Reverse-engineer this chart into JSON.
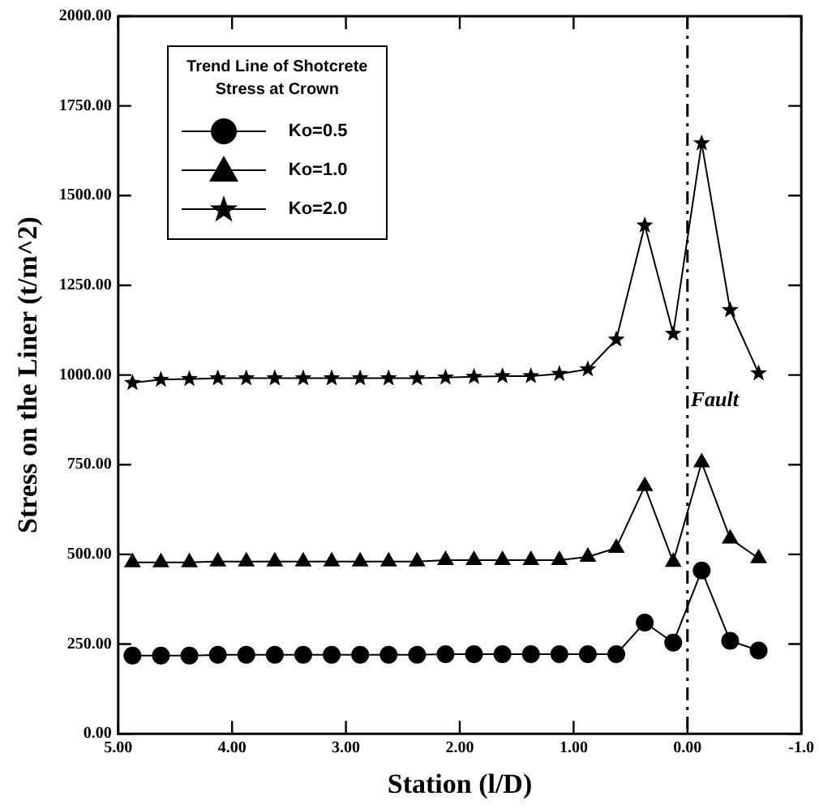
{
  "chart_data": {
    "type": "line",
    "xlabel": "Station (l/D)",
    "ylabel": "Stress on the Liner (t/m^2)",
    "legend_title": "Trend Line of Shotcrete Stress at Crown",
    "x": [
      4.875,
      4.625,
      4.375,
      4.125,
      3.875,
      3.625,
      3.375,
      3.125,
      2.875,
      2.625,
      2.375,
      2.125,
      1.875,
      1.625,
      1.375,
      1.125,
      0.875,
      0.625,
      0.375,
      0.125,
      -0.125,
      -0.375,
      -0.625
    ],
    "series": [
      {
        "name": "Ko=0.5",
        "color": "#000000",
        "marker": "circle",
        "values": [
          218,
          218,
          218,
          220,
          220,
          220,
          220,
          220,
          220,
          220,
          220,
          222,
          222,
          222,
          222,
          222,
          222,
          222,
          310,
          254,
          455,
          259,
          232
        ]
      },
      {
        "name": "Ko=1.0",
        "color": "#000000",
        "marker": "triangle",
        "values": [
          478,
          478,
          478,
          480,
          480,
          480,
          480,
          480,
          480,
          480,
          480,
          484,
          484,
          484,
          484,
          484,
          493,
          518,
          690,
          479,
          756,
          544,
          489
        ]
      },
      {
        "name": "Ko=2.0",
        "color": "#000000",
        "marker": "star",
        "values": [
          978,
          987,
          989,
          991,
          991,
          991,
          991,
          991,
          991,
          991,
          991,
          993,
          995,
          997,
          997,
          1003,
          1016,
          1099,
          1417,
          1115,
          1646,
          1181,
          1005
        ]
      }
    ],
    "xlim": [
      5,
      -1
    ],
    "xticks": [
      {
        "value": 5,
        "label": "5.00"
      },
      {
        "value": 4,
        "label": "4.00"
      },
      {
        "value": 3,
        "label": "3.00"
      },
      {
        "value": 2,
        "label": "2.00"
      },
      {
        "value": 1,
        "label": "1.00"
      },
      {
        "value": 0,
        "label": "0.00"
      },
      {
        "value": -1,
        "label": "-1.0"
      }
    ],
    "ylim": [
      0,
      2000
    ],
    "yticks": [
      {
        "value": 0,
        "label": "0.00"
      },
      {
        "value": 250,
        "label": "250.00"
      },
      {
        "value": 500,
        "label": "500.00"
      },
      {
        "value": 750,
        "label": "750.00"
      },
      {
        "value": 1000,
        "label": "1000.00"
      },
      {
        "value": 1250,
        "label": "1250.00"
      },
      {
        "value": 1500,
        "label": "1500.00"
      },
      {
        "value": 1750,
        "label": "1750.00"
      },
      {
        "value": 2000,
        "label": "2000.00"
      }
    ],
    "ref_lines": [
      {
        "axis": "x",
        "value": 0,
        "label": "Fault",
        "line_style": "dashed",
        "color": "#000000"
      }
    ],
    "grid": false,
    "legend": "top left",
    "line_style": "solid"
  }
}
